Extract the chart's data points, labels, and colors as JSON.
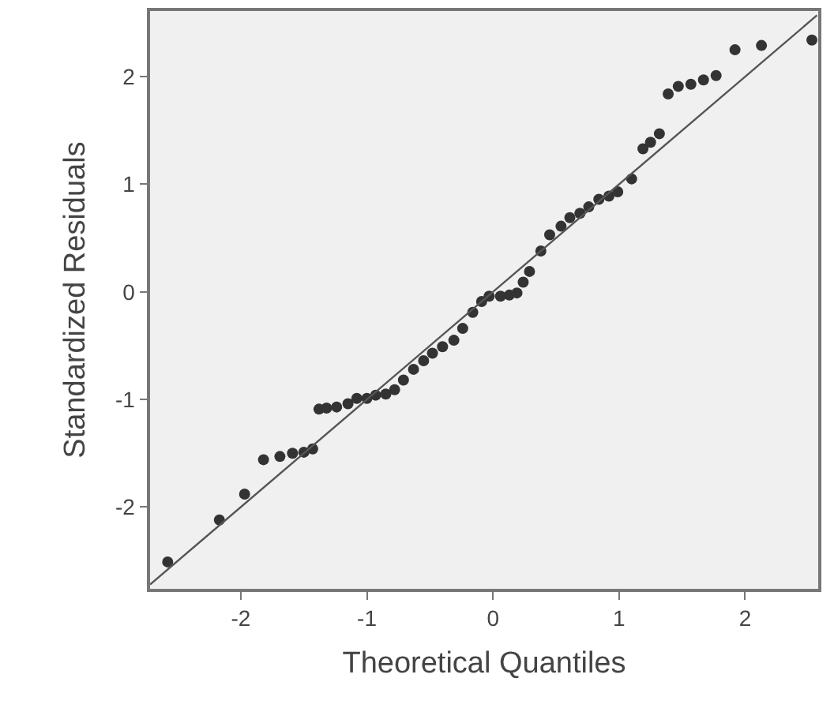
{
  "chart_data": {
    "type": "scatter",
    "xlabel": "Theoretical Quantiles",
    "ylabel": "Standardized Residuals",
    "xlim": [
      -2.72,
      2.58
    ],
    "ylim": [
      -2.76,
      2.61
    ],
    "xticks": [
      -2,
      -1,
      0,
      1,
      2
    ],
    "yticks": [
      -2,
      -1,
      0,
      1,
      2
    ],
    "grid": false,
    "series": [
      {
        "marker": "circle",
        "color": "#333333",
        "x": [
          -2.58,
          -2.17,
          -1.97,
          -1.82,
          -1.69,
          -1.59,
          -1.5,
          -1.43,
          -1.38,
          -1.32,
          -1.24,
          -1.15,
          -1.08,
          -1.0,
          -0.93,
          -0.85,
          -0.78,
          -0.71,
          -0.63,
          -0.55,
          -0.48,
          -0.4,
          -0.31,
          -0.24,
          -0.16,
          -0.09,
          -0.03,
          0.06,
          0.13,
          0.19,
          0.24,
          0.29,
          0.38,
          0.45,
          0.54,
          0.61,
          0.69,
          0.76,
          0.84,
          0.92,
          0.99,
          1.1,
          1.19,
          1.25,
          1.32,
          1.39,
          1.47,
          1.57,
          1.67,
          1.77,
          1.92,
          2.13,
          2.53
        ],
        "values": [
          -2.51,
          -2.12,
          -1.88,
          -1.56,
          -1.53,
          -1.5,
          -1.49,
          -1.46,
          -1.09,
          -1.08,
          -1.07,
          -1.04,
          -0.99,
          -0.99,
          -0.96,
          -0.95,
          -0.91,
          -0.82,
          -0.72,
          -0.64,
          -0.57,
          -0.51,
          -0.45,
          -0.34,
          -0.19,
          -0.09,
          -0.04,
          -0.04,
          -0.03,
          -0.01,
          0.09,
          0.19,
          0.38,
          0.53,
          0.61,
          0.69,
          0.73,
          0.79,
          0.86,
          0.89,
          0.93,
          1.05,
          1.33,
          1.39,
          1.47,
          1.84,
          1.91,
          1.93,
          1.97,
          2.01,
          2.25,
          2.29,
          2.34
        ]
      },
      {
        "type": "line",
        "marker": "none",
        "color": "#555555",
        "line_style": "solid",
        "x": [
          -2.72,
          2.57
        ],
        "values": [
          -2.72,
          2.57
        ]
      }
    ]
  }
}
